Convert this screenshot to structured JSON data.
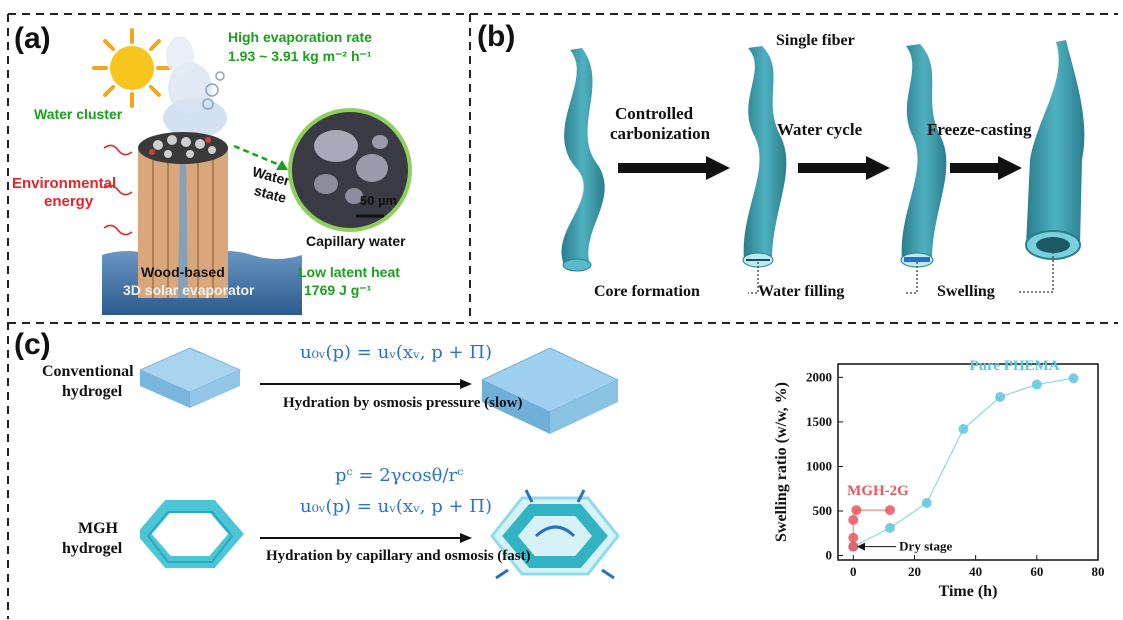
{
  "panel_a": {
    "label": "(a)",
    "high_rate_title": "High evaporation rate",
    "high_rate_value": "1.93 ~ 3.91 kg m⁻² h⁻¹",
    "water_cluster": "Water cluster",
    "environmental_energy_line1": "Environmental",
    "environmental_energy_line2": "energy",
    "water_state_line1": "Water",
    "water_state_line2": "state",
    "scale_bar": "50 µm",
    "capillary_water": "Capillary water",
    "evaporator_line1": "Wood-based",
    "evaporator_line2": "3D solar evaporator",
    "latent_heat_title": "Low latent heat",
    "latent_heat_value": "1769 J g⁻¹"
  },
  "panel_b": {
    "label": "(b)",
    "single_fiber": "Single fiber",
    "step1_line1": "Controlled",
    "step1_line2": "carbonization",
    "step2": "Water cycle",
    "step3": "Freeze-casting",
    "core_formation": "Core formation",
    "water_filling": "Water filling",
    "swelling": "Swelling"
  },
  "panel_c": {
    "label": "(c)",
    "conventional_line1": "Conventional",
    "conventional_line2": "hydrogel",
    "mgh_line1": "MGH",
    "mgh_line2": "hydrogel",
    "eq_top": "u₀ᵥ(p) = uᵥ(xᵥ, p + Π)",
    "eq_pc": "pᶜ = 2γcosθ/rᶜ",
    "eq_bottom": "u₀ᵥ(p) = uᵥ(xᵥ, p + Π)",
    "arrow_top_label": "Hydration by osmosis pressure (slow)",
    "arrow_bottom_label": "Hydration by capillary and osmosis (fast)"
  },
  "colors": {
    "teal": "#3a9aa8",
    "cyan_series": "#5ec6dc",
    "red_series": "#e8575e",
    "equation_blue": "#2a73c9",
    "green_text": "#1aa01a",
    "red_text": "#e0262b"
  },
  "chart_data": {
    "type": "scatter",
    "xlabel": "Time (h)",
    "ylabel": "Swelling ratio (w/w, %)",
    "xlim": [
      -5,
      80
    ],
    "ylim": [
      -50,
      2150
    ],
    "xticks": [
      0,
      20,
      40,
      60,
      80
    ],
    "yticks": [
      0,
      500,
      1000,
      1500,
      2000
    ],
    "grid": false,
    "series": [
      {
        "name": "Pure PHEMA",
        "color": "#5ec6dc",
        "x": [
          0,
          12,
          24,
          36,
          48,
          60,
          72
        ],
        "y": [
          100,
          310,
          590,
          1420,
          1780,
          1920,
          1990
        ]
      },
      {
        "name": "MGH-2G",
        "color": "#e8575e",
        "x": [
          0,
          0,
          0,
          1,
          12
        ],
        "y": [
          100,
          200,
          400,
          510,
          510
        ]
      }
    ],
    "annotations": [
      {
        "text": "Dry stage",
        "x": 2,
        "y": 100
      }
    ]
  }
}
